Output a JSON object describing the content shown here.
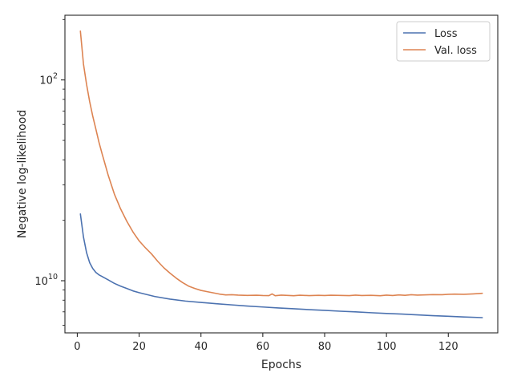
{
  "chart_data": {
    "type": "line",
    "title": "",
    "xlabel": "Epochs",
    "ylabel": "Negative log-likelihood",
    "xlim": [
      -4,
      136
    ],
    "ylim": [
      5.5,
      210
    ],
    "yscale": "log",
    "x_ticks": [
      0,
      20,
      40,
      60,
      80,
      100,
      120
    ],
    "y_major_ticks": [
      10,
      100
    ],
    "y_major_tick_labels": [
      "10",
      "2"
    ],
    "y_major_tick_bases": [
      "10",
      "10"
    ],
    "y_minor_ticks": [
      6,
      7,
      8,
      9,
      20,
      30,
      40,
      50,
      60,
      70,
      80,
      90,
      200
    ],
    "grid": false,
    "legend_position": "top-right",
    "series": [
      {
        "name": "Loss",
        "color": "#4c72b0",
        "x": [
          1,
          2,
          3,
          4,
          5,
          6,
          7,
          8,
          9,
          10,
          12,
          14,
          16,
          18,
          20,
          25,
          30,
          35,
          40,
          45,
          50,
          55,
          60,
          65,
          70,
          75,
          80,
          85,
          90,
          95,
          100,
          105,
          110,
          115,
          120,
          125,
          131
        ],
        "y": [
          21.5,
          16.5,
          13.8,
          12.3,
          11.5,
          11.0,
          10.7,
          10.5,
          10.3,
          10.1,
          9.7,
          9.4,
          9.15,
          8.9,
          8.72,
          8.35,
          8.1,
          7.92,
          7.8,
          7.68,
          7.58,
          7.48,
          7.4,
          7.32,
          7.25,
          7.18,
          7.12,
          7.05,
          7.0,
          6.93,
          6.87,
          6.82,
          6.76,
          6.7,
          6.65,
          6.6,
          6.55
        ]
      },
      {
        "name": "Val. loss",
        "color": "#dd8452",
        "x": [
          1,
          2,
          3,
          4,
          5,
          6,
          7,
          8,
          9,
          10,
          12,
          14,
          16,
          18,
          20,
          22,
          24,
          26,
          28,
          30,
          32,
          34,
          36,
          38,
          40,
          42,
          44,
          46,
          48,
          50,
          52,
          55,
          58,
          60,
          62,
          63,
          64,
          66,
          68,
          70,
          72,
          75,
          78,
          80,
          82,
          85,
          88,
          90,
          92,
          95,
          98,
          100,
          102,
          104,
          106,
          108,
          110,
          112,
          115,
          118,
          120,
          122,
          125,
          128,
          131
        ],
        "y": [
          175,
          120,
          95,
          78,
          66,
          57,
          49,
          43,
          38,
          33.5,
          27,
          22.8,
          19.8,
          17.5,
          15.8,
          14.6,
          13.6,
          12.5,
          11.6,
          10.9,
          10.3,
          9.8,
          9.4,
          9.15,
          8.95,
          8.82,
          8.7,
          8.58,
          8.5,
          8.52,
          8.48,
          8.45,
          8.47,
          8.44,
          8.43,
          8.6,
          8.42,
          8.48,
          8.45,
          8.42,
          8.47,
          8.43,
          8.46,
          8.44,
          8.47,
          8.45,
          8.43,
          8.48,
          8.44,
          8.46,
          8.42,
          8.48,
          8.44,
          8.5,
          8.46,
          8.52,
          8.48,
          8.5,
          8.53,
          8.52,
          8.56,
          8.58,
          8.56,
          8.6,
          8.66
        ]
      }
    ]
  }
}
